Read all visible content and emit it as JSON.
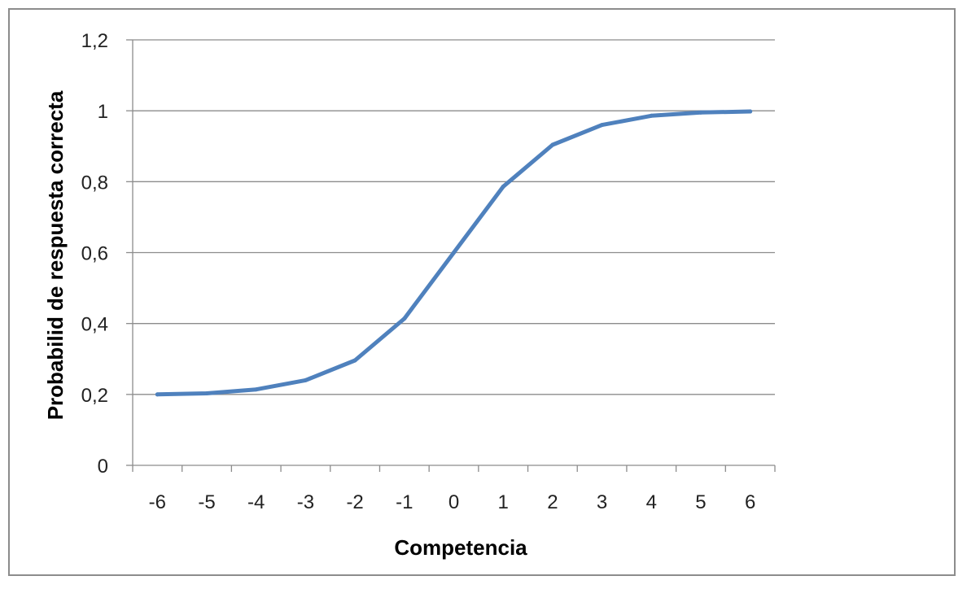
{
  "chart_data": {
    "type": "line",
    "title": "",
    "xlabel": "Competencia",
    "ylabel": "Probabilid de respuesta correcta",
    "x": [
      -6,
      -5,
      -4,
      -3,
      -2,
      -1,
      0,
      1,
      2,
      3,
      4,
      5,
      6
    ],
    "x_tick_labels": [
      "-6",
      "-5",
      "-4",
      "-3",
      "-2",
      "-1",
      "0",
      "1",
      "2",
      "3",
      "4",
      "5",
      "6"
    ],
    "series": [
      {
        "values": [
          0.2,
          0.203,
          0.214,
          0.24,
          0.296,
          0.414,
          0.6,
          0.786,
          0.904,
          0.96,
          0.986,
          0.995,
          0.998
        ]
      }
    ],
    "ylim": [
      0,
      1.2
    ],
    "y_ticks": [
      0,
      0.2,
      0.4,
      0.6,
      0.8,
      1,
      1.2
    ],
    "y_tick_labels": [
      "0",
      "0,2",
      "0,4",
      "0,6",
      "0,8",
      "1",
      "1,2"
    ],
    "grid": "horizontal",
    "legend": "none",
    "colors": {
      "line": "#4f81bd",
      "grid": "#8c8c8c",
      "axis": "#8c8c8c",
      "frame": "#8c8c8c"
    }
  }
}
